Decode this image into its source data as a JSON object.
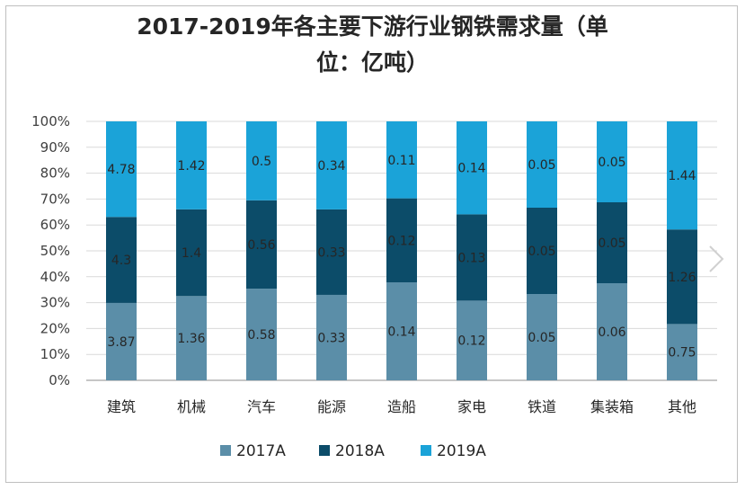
{
  "chart_data": {
    "type": "bar",
    "stacked": "percent",
    "title_line1": "2017-2019年各主要下游行业钢铁需求量（单",
    "title_line2": "位：亿吨）",
    "categories": [
      "建筑",
      "机械",
      "汽车",
      "能源",
      "造船",
      "家电",
      "铁道",
      "集装箱",
      "其他"
    ],
    "y_ticks": [
      "0%",
      "10%",
      "20%",
      "30%",
      "40%",
      "50%",
      "60%",
      "70%",
      "80%",
      "90%",
      "100%"
    ],
    "ylim": [
      0,
      1
    ],
    "grid": true,
    "legend_position": "bottom",
    "series": [
      {
        "name": "2017A",
        "color": "#5b8ea8",
        "values": [
          3.87,
          1.36,
          0.58,
          0.33,
          0.14,
          0.12,
          0.05,
          0.06,
          0.75
        ],
        "labels": [
          "3.87",
          "1.36",
          "0.58",
          "0.33",
          "0.14",
          "0.12",
          "0.05",
          "0.06",
          "0.75"
        ]
      },
      {
        "name": "2018A",
        "color": "#0c4c69",
        "values": [
          4.3,
          1.4,
          0.56,
          0.33,
          0.12,
          0.13,
          0.05,
          0.05,
          1.26
        ],
        "labels": [
          "4.3",
          "1.4",
          "0.56",
          "0.33",
          "0.12",
          "0.13",
          "0.05",
          "0.05",
          "1.26"
        ]
      },
      {
        "name": "2019A",
        "color": "#1ba3d8",
        "values": [
          4.78,
          1.42,
          0.5,
          0.34,
          0.11,
          0.14,
          0.05,
          0.05,
          1.44
        ],
        "labels": [
          "4.78",
          "1.42",
          "0.5",
          "0.34",
          "0.11",
          "0.14",
          "0.05",
          "0.05",
          "1.44"
        ]
      }
    ]
  },
  "colors": {
    "grid": "#d9d9d9",
    "axis": "#8c8c8c",
    "nav_arrow": "#d0d0d0"
  },
  "icons": {
    "next": "chevron-right-icon"
  }
}
